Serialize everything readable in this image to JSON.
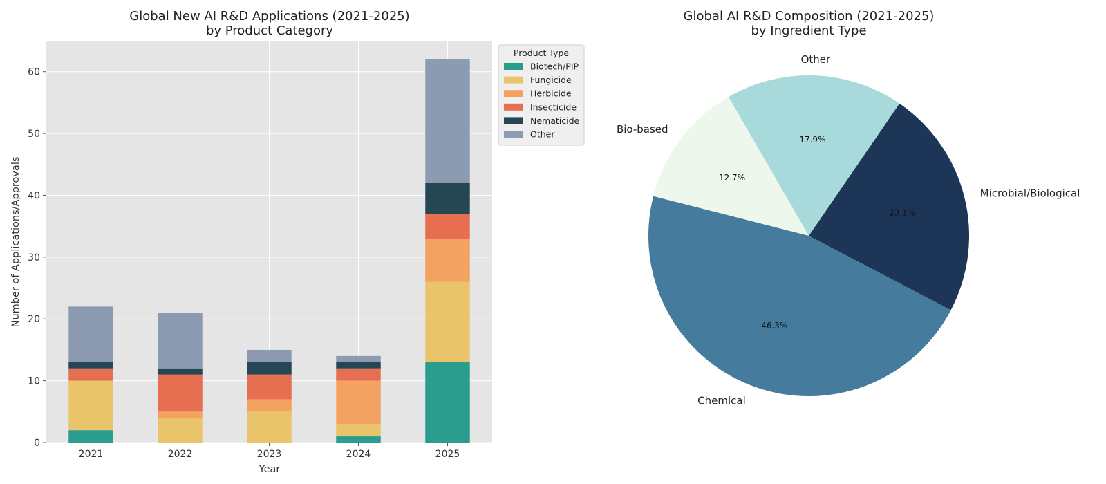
{
  "chart_data": [
    {
      "type": "bar",
      "stacked": true,
      "title_line1": "Global New AI R&D Applications (2021-2025)",
      "title_line2": "by Product Category",
      "xlabel": "Year",
      "ylabel": "Number of Applications/Approvals",
      "ylim": [
        0,
        65
      ],
      "yticks": [
        0,
        10,
        20,
        30,
        40,
        50,
        60
      ],
      "grid": true,
      "categories": [
        "2021",
        "2022",
        "2023",
        "2024",
        "2025"
      ],
      "legend": {
        "title": "Product Type",
        "placement": "outside-upper-right"
      },
      "series": [
        {
          "name": "Biotech/PIP",
          "color": "#2a9d8f",
          "values": [
            2,
            0,
            0,
            1,
            13
          ]
        },
        {
          "name": "Fungicide",
          "color": "#e9c46a",
          "values": [
            8,
            4,
            5,
            2,
            13
          ]
        },
        {
          "name": "Herbicide",
          "color": "#f4a261",
          "values": [
            0,
            1,
            2,
            7,
            7
          ]
        },
        {
          "name": "Insecticide",
          "color": "#e76f51",
          "values": [
            2,
            6,
            4,
            2,
            4
          ]
        },
        {
          "name": "Nematicide",
          "color": "#264653",
          "values": [
            1,
            1,
            2,
            1,
            5
          ]
        },
        {
          "name": "Other",
          "color": "#8d9bb2",
          "values": [
            9,
            9,
            2,
            1,
            20
          ]
        }
      ]
    },
    {
      "type": "pie",
      "title_line1": "Global AI R&D Composition (2021-2025)",
      "title_line2": "by Ingredient Type",
      "start_angle_deg": 120,
      "direction": "counterclockwise",
      "slices": [
        {
          "label": "Bio-based",
          "value": 12.7,
          "pct_label": "12.7%",
          "color": "#edf7ec"
        },
        {
          "label": "Chemical",
          "value": 46.3,
          "pct_label": "46.3%",
          "color": "#457b9d"
        },
        {
          "label": "Microbial/Biological",
          "value": 23.1,
          "pct_label": "23.1%",
          "color": "#1d3557"
        },
        {
          "label": "Other",
          "value": 17.9,
          "pct_label": "17.9%",
          "color": "#a8dadc"
        }
      ]
    }
  ]
}
